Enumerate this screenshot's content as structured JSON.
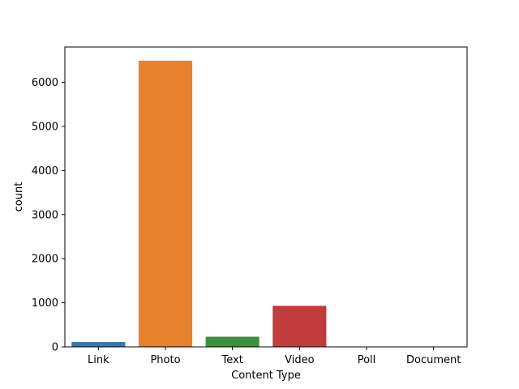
{
  "chart_data": {
    "type": "bar",
    "title": "",
    "xlabel": "Content Type",
    "ylabel": "count",
    "categories": [
      "Link",
      "Photo",
      "Text",
      "Video",
      "Poll",
      "Document"
    ],
    "values": [
      110,
      6490,
      230,
      930,
      3,
      1
    ],
    "colors": [
      "#3a75af",
      "#e7812d",
      "#3b923b",
      "#c03c3d",
      "#9371b8",
      "#8c5a4d"
    ],
    "ylim": [
      0,
      6800
    ],
    "yticks": [
      0,
      1000,
      2000,
      3000,
      4000,
      5000,
      6000
    ],
    "grid": false,
    "legend": "none"
  }
}
